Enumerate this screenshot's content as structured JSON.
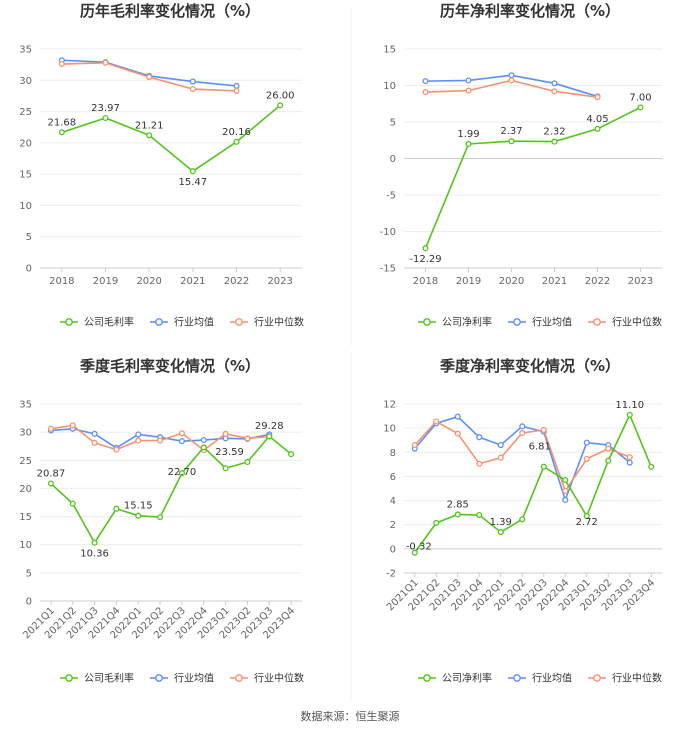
{
  "footer": {
    "source": "数据来源：恒生聚源"
  },
  "legend": {
    "company_gross": "公司毛利率",
    "company_net": "公司净利率",
    "industry_avg": "行业均值",
    "industry_median": "行业中位数"
  },
  "colors": {
    "company": "#52c41a",
    "industry_avg": "#5b8ff9",
    "industry_median": "#f6926f"
  },
  "chart_data": [
    {
      "type": "line",
      "title": "历年毛利率变化情况（%）",
      "categories": [
        "2018",
        "2019",
        "2020",
        "2021",
        "2022",
        "2023"
      ],
      "ylim": [
        0,
        35
      ],
      "yticks": [
        0,
        5,
        10,
        15,
        20,
        25,
        30,
        35
      ],
      "legend_position": "bottom",
      "series": [
        {
          "name": "公司毛利率",
          "key": "company",
          "values": [
            21.68,
            23.97,
            21.21,
            15.47,
            20.16,
            26.0
          ],
          "labels": [
            "21.68",
            "23.97",
            "21.21",
            "15.47",
            "20.16",
            "26.00"
          ]
        },
        {
          "name": "行业均值",
          "key": "industry_avg",
          "values": [
            33.2,
            32.9,
            30.7,
            29.8,
            29.1,
            null
          ]
        },
        {
          "name": "行业中位数",
          "key": "industry_median",
          "values": [
            32.6,
            32.8,
            30.5,
            28.6,
            28.3,
            null
          ]
        }
      ]
    },
    {
      "type": "line",
      "title": "历年净利率变化情况（%）",
      "categories": [
        "2018",
        "2019",
        "2020",
        "2021",
        "2022",
        "2023"
      ],
      "ylim": [
        -15,
        15
      ],
      "yticks": [
        -15,
        -10,
        -5,
        0,
        5,
        10,
        15
      ],
      "legend_position": "bottom",
      "series": [
        {
          "name": "公司净利率",
          "key": "company",
          "values": [
            -12.29,
            1.99,
            2.37,
            2.32,
            4.05,
            7.0
          ],
          "labels": [
            "-12.29",
            "1.99",
            "2.37",
            "2.32",
            "4.05",
            "7.00"
          ]
        },
        {
          "name": "行业均值",
          "key": "industry_avg",
          "values": [
            10.6,
            10.7,
            11.4,
            10.3,
            8.5,
            null
          ]
        },
        {
          "name": "行业中位数",
          "key": "industry_median",
          "values": [
            9.1,
            9.3,
            10.7,
            9.2,
            8.4,
            null
          ]
        }
      ]
    },
    {
      "type": "line",
      "title": "季度毛利率变化情况（%）",
      "categories": [
        "2021Q1",
        "2021Q2",
        "2021Q3",
        "2021Q4",
        "2022Q1",
        "2022Q2",
        "2022Q3",
        "2022Q4",
        "2023Q1",
        "2023Q2",
        "2023Q3",
        "2023Q4"
      ],
      "ylim": [
        0,
        35
      ],
      "yticks": [
        0,
        5,
        10,
        15,
        20,
        25,
        30,
        35
      ],
      "legend_position": "bottom",
      "series": [
        {
          "name": "公司毛利率",
          "key": "company",
          "values": [
            20.87,
            17.3,
            10.36,
            16.4,
            15.15,
            14.9,
            22.7,
            27.3,
            23.59,
            24.7,
            29.28,
            26.1
          ],
          "labels": [
            "20.87",
            "",
            "10.36",
            "",
            "15.15",
            "",
            "22.70",
            "",
            "23.59",
            "",
            "29.28",
            ""
          ]
        },
        {
          "name": "行业均值",
          "key": "industry_avg",
          "values": [
            30.3,
            30.6,
            29.7,
            27.2,
            29.6,
            29.1,
            28.4,
            28.6,
            28.9,
            28.8,
            29.6,
            null
          ]
        },
        {
          "name": "行业中位数",
          "key": "industry_median",
          "values": [
            30.6,
            31.2,
            28.1,
            26.9,
            28.5,
            28.5,
            29.8,
            26.8,
            29.7,
            28.9,
            29.2,
            null
          ]
        }
      ]
    },
    {
      "type": "line",
      "title": "季度净利率变化情况（%）",
      "categories": [
        "2021Q1",
        "2021Q2",
        "2021Q3",
        "2021Q4",
        "2022Q1",
        "2022Q2",
        "2022Q3",
        "2022Q4",
        "2023Q1",
        "2023Q2",
        "2023Q3",
        "2023Q4"
      ],
      "ylim": [
        -2,
        12
      ],
      "yticks": [
        -2,
        0,
        2,
        4,
        6,
        8,
        10,
        12
      ],
      "legend_position": "bottom",
      "series": [
        {
          "name": "公司净利率",
          "key": "company",
          "values": [
            -0.32,
            2.15,
            2.85,
            2.8,
            1.39,
            2.45,
            6.81,
            5.7,
            2.72,
            7.3,
            11.1,
            6.8
          ],
          "labels": [
            "-0.32",
            "",
            "2.85",
            "",
            "1.39",
            "",
            "6.81",
            "",
            "2.72",
            "",
            "11.10",
            ""
          ]
        },
        {
          "name": "行业均值",
          "key": "industry_avg",
          "values": [
            8.3,
            10.4,
            10.95,
            9.25,
            8.6,
            10.15,
            9.7,
            4.05,
            8.8,
            8.6,
            7.15,
            null
          ]
        },
        {
          "name": "行业中位数",
          "key": "industry_median",
          "values": [
            8.6,
            10.55,
            9.55,
            7.05,
            7.55,
            9.6,
            9.85,
            4.8,
            7.45,
            8.3,
            7.6,
            null
          ]
        }
      ]
    }
  ]
}
